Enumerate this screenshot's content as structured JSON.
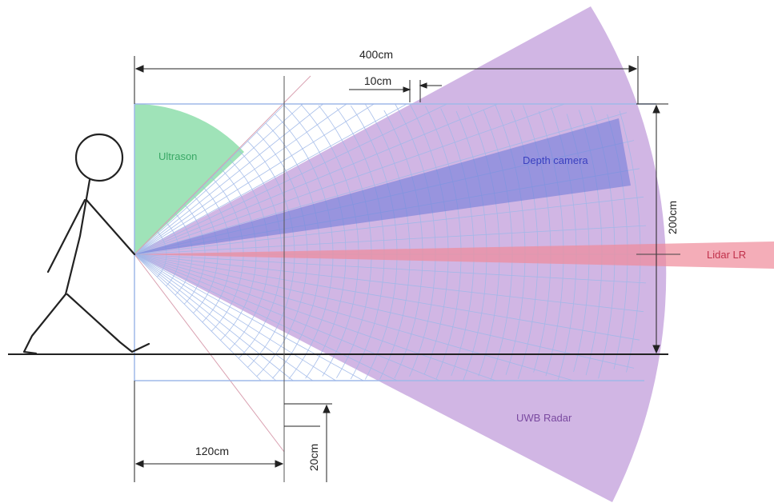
{
  "dimensions": {
    "total_length": "400cm",
    "cell_spacing": "10cm",
    "field_height": "200cm",
    "offset_length": "120cm",
    "offset_height": "20cm"
  },
  "sensors": [
    {
      "name": "Ultrason",
      "color": "#7fd9a0",
      "text_color": "#3aa866"
    },
    {
      "name": "Depth camera",
      "color": "#6a78d8",
      "text_color": "#3a40c0"
    },
    {
      "name": "Lidar LR",
      "color": "#f08a9a",
      "text_color": "#c0304a"
    },
    {
      "name": "UWB Radar",
      "color": "#c9a9df",
      "text_color": "#7a4aa0"
    }
  ],
  "colors": {
    "grid": "#9fb8e8",
    "line": "#222222",
    "figure": "#222222"
  }
}
